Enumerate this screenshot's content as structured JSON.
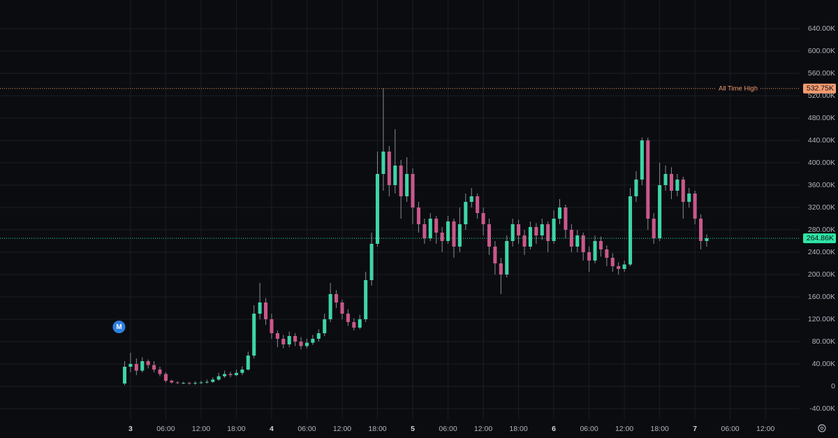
{
  "chart_data": {
    "type": "candlestick",
    "up_color": "#3fd4a8",
    "down_color": "#c9588c",
    "grid": true,
    "marker_label": "M",
    "x": [
      -1,
      0,
      1,
      2,
      3,
      4,
      5,
      6,
      7,
      8,
      9,
      10,
      11,
      12,
      13,
      14,
      15,
      16,
      17,
      18,
      19,
      20,
      21,
      22,
      23,
      24,
      25,
      26,
      27,
      28,
      29,
      30,
      31,
      32,
      33,
      34,
      35,
      36,
      37,
      38,
      39,
      40,
      41,
      42,
      43,
      44,
      45,
      46,
      47,
      48,
      49,
      50,
      51,
      52,
      53,
      54,
      55,
      56,
      57,
      58,
      59,
      60,
      61,
      62,
      63,
      64,
      65,
      66,
      67,
      68,
      69,
      70,
      71,
      72,
      73,
      74,
      75,
      76,
      77,
      78,
      79,
      80,
      81,
      82,
      83,
      84,
      85,
      86,
      87,
      88,
      89,
      90,
      91,
      92,
      93,
      94,
      95,
      96,
      97,
      98
    ],
    "open": [
      5,
      35,
      40,
      28,
      45,
      38,
      30,
      22,
      10,
      7,
      6,
      6,
      5,
      6,
      7,
      8,
      12,
      18,
      22,
      20,
      24,
      30,
      55,
      130,
      150,
      120,
      95,
      85,
      75,
      90,
      80,
      72,
      78,
      85,
      95,
      120,
      165,
      150,
      130,
      115,
      105,
      120,
      190,
      255,
      380,
      420,
      360,
      395,
      340,
      380,
      320,
      290,
      265,
      300,
      275,
      260,
      295,
      250,
      290,
      330,
      340,
      310,
      290,
      250,
      220,
      200,
      260,
      290,
      270,
      250,
      285,
      270,
      290,
      260,
      300,
      320,
      280,
      250,
      270,
      240,
      225,
      260,
      245,
      230,
      215,
      210,
      218,
      340,
      370,
      440,
      300,
      265,
      360,
      380,
      350,
      370,
      330,
      345,
      300,
      260
    ],
    "high": [
      45,
      60,
      50,
      52,
      48,
      45,
      35,
      25,
      12,
      9,
      8,
      8,
      9,
      10,
      12,
      16,
      24,
      28,
      26,
      30,
      36,
      62,
      145,
      185,
      158,
      130,
      100,
      92,
      98,
      95,
      88,
      85,
      92,
      102,
      130,
      185,
      172,
      155,
      138,
      122,
      128,
      205,
      275,
      420,
      532.75,
      430,
      460,
      405,
      410,
      390,
      330,
      300,
      310,
      305,
      285,
      305,
      300,
      320,
      345,
      355,
      345,
      320,
      300,
      260,
      230,
      270,
      300,
      298,
      280,
      295,
      292,
      300,
      295,
      315,
      335,
      325,
      290,
      280,
      275,
      250,
      270,
      268,
      252,
      238,
      222,
      225,
      355,
      385,
      445,
      445,
      310,
      400,
      395,
      392,
      380,
      375,
      355,
      350,
      308,
      272
    ],
    "low": [
      2,
      25,
      20,
      25,
      32,
      25,
      18,
      7,
      5,
      4,
      4,
      3,
      3,
      4,
      5,
      6,
      10,
      15,
      16,
      18,
      20,
      28,
      50,
      120,
      110,
      85,
      70,
      68,
      70,
      72,
      66,
      68,
      74,
      80,
      90,
      115,
      140,
      120,
      108,
      100,
      102,
      115,
      180,
      250,
      350,
      340,
      345,
      300,
      330,
      290,
      275,
      255,
      260,
      255,
      240,
      255,
      230,
      240,
      280,
      320,
      300,
      270,
      235,
      200,
      165,
      195,
      250,
      255,
      235,
      245,
      255,
      262,
      240,
      255,
      290,
      265,
      240,
      240,
      225,
      205,
      220,
      232,
      215,
      205,
      200,
      205,
      215,
      330,
      360,
      280,
      255,
      260,
      350,
      335,
      340,
      300,
      320,
      290,
      245,
      250
    ],
    "close": [
      35,
      40,
      28,
      45,
      38,
      30,
      22,
      10,
      7,
      6,
      6,
      5,
      6,
      7,
      8,
      12,
      18,
      22,
      20,
      24,
      30,
      55,
      130,
      150,
      120,
      95,
      85,
      75,
      90,
      80,
      72,
      78,
      85,
      95,
      120,
      165,
      150,
      130,
      115,
      105,
      120,
      190,
      255,
      380,
      420,
      360,
      395,
      340,
      380,
      320,
      290,
      265,
      300,
      275,
      260,
      295,
      250,
      290,
      330,
      340,
      310,
      290,
      250,
      220,
      200,
      260,
      290,
      270,
      250,
      285,
      270,
      290,
      260,
      300,
      320,
      280,
      250,
      270,
      240,
      225,
      260,
      245,
      230,
      215,
      210,
      218,
      340,
      370,
      440,
      300,
      265,
      360,
      380,
      350,
      370,
      330,
      345,
      300,
      260,
      264.86
    ],
    "xlim": [
      -22.2,
      113.8
    ],
    "xticks": [
      {
        "value": 0,
        "label": "3"
      },
      {
        "value": 6,
        "label": "06:00"
      },
      {
        "value": 12,
        "label": "12:00"
      },
      {
        "value": 18,
        "label": "18:00"
      },
      {
        "value": 24,
        "label": "4"
      },
      {
        "value": 30,
        "label": "06:00"
      },
      {
        "value": 36,
        "label": "12:00"
      },
      {
        "value": 42,
        "label": "18:00"
      },
      {
        "value": 48,
        "label": "5"
      },
      {
        "value": 54,
        "label": "06:00"
      },
      {
        "value": 60,
        "label": "12:00"
      },
      {
        "value": 66,
        "label": "18:00"
      },
      {
        "value": 72,
        "label": "6"
      },
      {
        "value": 78,
        "label": "06:00"
      },
      {
        "value": 84,
        "label": "12:00"
      },
      {
        "value": 90,
        "label": "18:00"
      },
      {
        "value": 96,
        "label": "7"
      },
      {
        "value": 102,
        "label": "06:00"
      },
      {
        "value": 108,
        "label": "12:00"
      }
    ],
    "ylim": [
      -58.75,
      691.25
    ],
    "yticks": [
      {
        "value": -40,
        "label": "-40.00K"
      },
      0,
      {
        "value": 40,
        "label": "40.00K"
      },
      {
        "value": 80,
        "label": "80.00K"
      },
      {
        "value": 120,
        "label": "120.00K"
      },
      {
        "value": 160,
        "label": "160.00K"
      },
      {
        "value": 200,
        "label": "200.00K"
      },
      {
        "value": 240,
        "label": "240.00K"
      },
      {
        "value": 280,
        "label": "280.00K"
      },
      {
        "value": 320,
        "label": "320.00K"
      },
      {
        "value": 360,
        "label": "360.00K"
      },
      {
        "value": 400,
        "label": "400.00K"
      },
      {
        "value": 440,
        "label": "440.00K"
      },
      {
        "value": 480,
        "label": "480.00K"
      },
      {
        "value": 520,
        "label": "520.00K"
      },
      {
        "value": 560,
        "label": "560.00K"
      },
      {
        "value": 600,
        "label": "600.00K"
      },
      {
        "value": 640,
        "label": "640.00K"
      }
    ],
    "price_lines": [
      {
        "name": "All Time High",
        "value": 532.75,
        "value_label": "532.75K",
        "color": "#f29b6f"
      },
      {
        "value": 264.86,
        "value_label": "264.86K",
        "color": "#2ee6a6"
      }
    ]
  }
}
